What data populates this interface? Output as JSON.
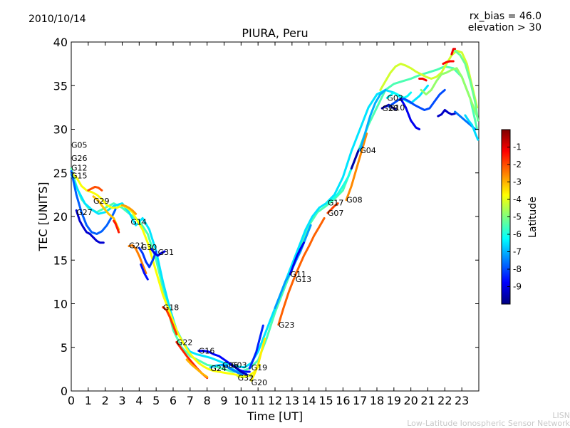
{
  "header": {
    "date": "2010/10/14",
    "rx_bias": "rx_bias = 46.0",
    "elevation": "elevation > 30"
  },
  "footer": {
    "line1": "LISN",
    "line2": "Low-Latitude Ionospheric Sensor Network"
  },
  "chart_data": {
    "type": "scatter",
    "title": "PIURA, Peru",
    "xlabel": "Time [UT]",
    "ylabel": "TEC [UNITS]",
    "xlim": [
      0,
      24
    ],
    "ylim": [
      0,
      40
    ],
    "xticks": [
      0,
      1,
      2,
      3,
      4,
      5,
      6,
      7,
      8,
      9,
      10,
      11,
      12,
      13,
      14,
      15,
      16,
      17,
      18,
      19,
      20,
      21,
      22,
      23
    ],
    "yticks": [
      0,
      5,
      10,
      15,
      20,
      25,
      30,
      35,
      40
    ],
    "colorbar": {
      "label": "Latitude",
      "range": [
        -10,
        0
      ],
      "ticks": [
        -9,
        -8,
        -7,
        -6,
        -5,
        -4,
        -3,
        -2,
        -1
      ],
      "colormap": [
        "#00007f",
        "#0000ff",
        "#007fff",
        "#00ffff",
        "#7fff7f",
        "#ffff00",
        "#ff7f00",
        "#ff0000",
        "#7f0000"
      ]
    },
    "labels": [
      {
        "text": "G05",
        "x": 0.0,
        "y": 28.2
      },
      {
        "text": "G26",
        "x": 0.0,
        "y": 26.7
      },
      {
        "text": "G12",
        "x": 0.0,
        "y": 25.6
      },
      {
        "text": "G15",
        "x": 0.0,
        "y": 24.7
      },
      {
        "text": "G27",
        "x": 0.3,
        "y": 20.5
      },
      {
        "text": "G29",
        "x": 1.3,
        "y": 21.8
      },
      {
        "text": "G14",
        "x": 3.5,
        "y": 19.4
      },
      {
        "text": "G21",
        "x": 3.4,
        "y": 16.7
      },
      {
        "text": "G30",
        "x": 4.1,
        "y": 16.5
      },
      {
        "text": "G31",
        "x": 5.1,
        "y": 15.9
      },
      {
        "text": "G18",
        "x": 5.4,
        "y": 9.6
      },
      {
        "text": "G22",
        "x": 6.2,
        "y": 5.6
      },
      {
        "text": "G16",
        "x": 7.5,
        "y": 4.6
      },
      {
        "text": "G24",
        "x": 8.2,
        "y": 2.6
      },
      {
        "text": "G06",
        "x": 8.9,
        "y": 3.0
      },
      {
        "text": "G03",
        "x": 9.4,
        "y": 3.0
      },
      {
        "text": "G32",
        "x": 9.8,
        "y": 1.5
      },
      {
        "text": "G19",
        "x": 10.6,
        "y": 2.7
      },
      {
        "text": "G20",
        "x": 10.6,
        "y": 1.0
      },
      {
        "text": "G23",
        "x": 12.2,
        "y": 7.6
      },
      {
        "text": "G11",
        "x": 12.9,
        "y": 13.4
      },
      {
        "text": "G13",
        "x": 13.2,
        "y": 12.8
      },
      {
        "text": "G17",
        "x": 15.1,
        "y": 21.6
      },
      {
        "text": "G07",
        "x": 15.1,
        "y": 20.4
      },
      {
        "text": "G08",
        "x": 16.2,
        "y": 21.9
      },
      {
        "text": "G04",
        "x": 17.0,
        "y": 27.6
      },
      {
        "text": "G02",
        "x": 18.6,
        "y": 33.6
      },
      {
        "text": "G28",
        "x": 18.3,
        "y": 32.4
      },
      {
        "text": "G10",
        "x": 18.7,
        "y": 32.5
      }
    ],
    "series": [
      {
        "lat": -5.5,
        "x": [
          0,
          0.3,
          0.6,
          1.0,
          1.5,
          2.0,
          2.5,
          3.0,
          3.5,
          4.0,
          4.5,
          5.0,
          5.5,
          6.0,
          6.5,
          7.0,
          7.5,
          8.0,
          8.5,
          9.0,
          9.5,
          10.0,
          10.5,
          11.0,
          11.5,
          12.0,
          12.5,
          13.0,
          13.5,
          14.0,
          14.5,
          15.0,
          15.5,
          16.0,
          16.5,
          17.0,
          17.5,
          18.0,
          18.5,
          19.0,
          19.5,
          20.0,
          20.5,
          21.0,
          21.5,
          22.0,
          22.5,
          23.0,
          23.5,
          23.9
        ],
        "y": [
          25.5,
          23.5,
          22,
          21,
          20.5,
          21,
          21.5,
          21,
          20.2,
          19.5,
          18,
          15,
          11,
          7,
          5,
          4,
          3.5,
          3,
          2.8,
          2.5,
          2.2,
          2.2,
          2.6,
          3.5,
          6,
          9,
          11.5,
          14,
          16.5,
          19,
          20.5,
          21.2,
          22,
          23,
          25.5,
          28,
          30.5,
          32.5,
          34.5,
          35.2,
          35.5,
          35.8,
          36.2,
          36.5,
          36.8,
          37.2,
          37,
          36,
          33.5,
          30
        ]
      },
      {
        "lat": -6.5,
        "x": [
          0,
          0.4,
          0.8,
          1.2,
          1.6,
          2.0,
          2.5,
          3.0,
          3.4,
          3.8,
          4.2,
          4.6,
          5.0,
          5.4,
          5.8,
          6.2,
          6.6,
          7.0,
          7.4,
          7.8,
          8.2,
          8.6,
          9.0,
          9.4,
          9.8,
          10.2,
          10.6,
          11.0,
          11.4,
          11.8,
          12.2,
          12.6,
          13.0,
          13.4,
          13.8,
          14.2,
          14.6,
          15.0,
          15.5,
          16.0,
          16.5,
          17.0,
          17.5,
          18.0,
          18.5,
          19.0,
          19.5,
          20.0,
          20.5,
          21.0
        ],
        "y": [
          24.8,
          23,
          21.5,
          20.8,
          20.3,
          20.5,
          21.2,
          21.5,
          20.5,
          19,
          19.8,
          18.5,
          16,
          12.5,
          9.5,
          7,
          5.5,
          4.5,
          4.2,
          4,
          3.8,
          3.5,
          3.2,
          3,
          2.8,
          2.7,
          3.2,
          4.5,
          6.5,
          8.5,
          10.5,
          12.5,
          14.5,
          16.5,
          18.5,
          20,
          21,
          21.5,
          22.5,
          24.5,
          27.5,
          30,
          32.5,
          34,
          34.5,
          34.2,
          33.5,
          33,
          33.8,
          35
        ]
      },
      {
        "lat": -3.8,
        "x": [
          0,
          0.3,
          0.6,
          0.9,
          1.2,
          1.5,
          1.8,
          2.1,
          2.4,
          2.7,
          3.0,
          3.3,
          3.6,
          3.9,
          4.2,
          4.5,
          4.8,
          5.1,
          5.4,
          5.7,
          6.0,
          6.3,
          6.6,
          6.9,
          7.2,
          7.5,
          7.8,
          8.1,
          8.4,
          8.7,
          9.0,
          9.3,
          9.6,
          9.9,
          10.2,
          10.5,
          10.8,
          11.1
        ],
        "y": [
          25,
          24.5,
          23.5,
          23,
          22.8,
          22.5,
          22,
          21.3,
          21,
          21,
          21.3,
          21,
          20.5,
          19.5,
          18.5,
          17,
          15,
          13,
          11,
          9.5,
          8,
          6.5,
          5.5,
          4.5,
          3.8,
          3.2,
          2.8,
          2.5,
          2.3,
          2.2,
          2.1,
          2.0,
          1.9,
          1.8,
          1.7,
          1.8,
          2.2,
          3.0
        ]
      },
      {
        "lat": -4.2,
        "x": [
          18.2,
          18.5,
          18.8,
          19.1,
          19.4,
          19.7,
          20.0,
          20.3,
          20.6,
          20.9,
          21.2,
          21.5,
          21.8,
          22.1,
          22.4,
          22.7,
          23.0,
          23.3,
          23.6,
          23.9
        ],
        "y": [
          34.5,
          35.5,
          36.5,
          37.2,
          37.5,
          37.3,
          37,
          36.6,
          36.3,
          36,
          35.8,
          36,
          36.5,
          37.5,
          38.5,
          39,
          38.8,
          37.5,
          35,
          32.5
        ]
      },
      {
        "lat": -9.2,
        "x": [
          0.3,
          0.5,
          0.7,
          0.9,
          1.1,
          1.3,
          1.5,
          1.7,
          1.9
        ],
        "y": [
          20.7,
          19.5,
          18.8,
          18.2,
          18,
          17.6,
          17.2,
          17,
          17
        ]
      },
      {
        "lat": -7.8,
        "x": [
          0.0,
          0.3,
          0.6,
          0.9,
          1.2,
          1.5,
          1.8,
          2.1,
          2.4,
          2.6
        ],
        "y": [
          25.2,
          22.5,
          20.5,
          19,
          18.2,
          18,
          18.3,
          19,
          20,
          20.8
        ]
      },
      {
        "lat": -2.0,
        "x": [
          1.0,
          1.2,
          1.4,
          1.6,
          1.8
        ],
        "y": [
          23.0,
          23.2,
          23.4,
          23.3,
          23.0
        ]
      },
      {
        "lat": -3.2,
        "x": [
          1.3,
          1.6,
          1.9,
          2.2,
          2.5,
          2.8
        ],
        "y": [
          22.3,
          21.8,
          21,
          20.3,
          19.8,
          18.5
        ]
      },
      {
        "lat": -2.8,
        "x": [
          3.0,
          3.2,
          3.4,
          3.6,
          3.8
        ],
        "y": [
          21.3,
          21.2,
          21,
          20.7,
          20.3
        ]
      },
      {
        "lat": -1.5,
        "x": [
          2.5,
          2.6,
          2.7,
          2.8
        ],
        "y": [
          19.5,
          19.2,
          18.7,
          18.2
        ]
      },
      {
        "lat": -2.5,
        "x": [
          3.4,
          3.6,
          3.8,
          4.0,
          4.2,
          4.4
        ],
        "y": [
          16.6,
          16.7,
          16.3,
          15.5,
          14.5,
          13.5
        ]
      },
      {
        "lat": -8.2,
        "x": [
          4.0,
          4.2,
          4.4,
          4.6,
          4.8,
          5.0
        ],
        "y": [
          16.4,
          15.8,
          14.8,
          14.2,
          15,
          16
        ]
      },
      {
        "lat": -9.0,
        "x": [
          4.7,
          4.9,
          5.1,
          5.3,
          5.5
        ],
        "y": [
          16.3,
          15.8,
          15.5,
          15.8,
          16.0
        ]
      },
      {
        "lat": -8.6,
        "x": [
          4.1,
          4.3,
          4.5
        ],
        "y": [
          14.5,
          13.5,
          12.8
        ]
      },
      {
        "lat": -1.8,
        "x": [
          5.4,
          5.6,
          5.8,
          6.0,
          6.2
        ],
        "y": [
          9.6,
          9.3,
          8.5,
          7.5,
          6.5
        ]
      },
      {
        "lat": -1.6,
        "x": [
          6.2,
          6.5,
          6.8,
          7.1,
          7.4,
          7.7,
          8.0
        ],
        "y": [
          5.6,
          4.8,
          4.0,
          3.3,
          2.6,
          2.0,
          1.5
        ]
      },
      {
        "lat": -3.0,
        "x": [
          6.8,
          7.1,
          7.4,
          7.7,
          8.0
        ],
        "y": [
          3.6,
          3.0,
          2.5,
          2.0,
          1.6
        ]
      },
      {
        "lat": -8.7,
        "x": [
          7.5,
          7.8,
          8.1,
          8.4,
          8.7,
          9.0,
          9.3,
          9.6,
          9.9,
          10.2,
          10.5
        ],
        "y": [
          4.6,
          4.6,
          4.5,
          4.2,
          4.0,
          3.6,
          3.2,
          2.8,
          2.4,
          2.2,
          2.2
        ]
      },
      {
        "lat": -6.8,
        "x": [
          8.2,
          8.5,
          8.8,
          9.1,
          9.4,
          9.7,
          10.0,
          10.3
        ],
        "y": [
          2.7,
          2.9,
          3.0,
          2.8,
          2.6,
          2.3,
          2.1,
          2.0
        ]
      },
      {
        "lat": -7.5,
        "x": [
          8.9,
          9.1,
          9.3,
          9.5,
          9.7,
          9.9,
          10.1
        ],
        "y": [
          3.0,
          2.9,
          2.6,
          2.4,
          2.2,
          2.0,
          1.9
        ]
      },
      {
        "lat": -9.4,
        "x": [
          9.4,
          9.6,
          9.8,
          10.0,
          10.2,
          10.4,
          10.6
        ],
        "y": [
          3.0,
          2.8,
          2.5,
          2.2,
          2.0,
          1.8,
          1.7
        ]
      },
      {
        "lat": -4.0,
        "x": [
          9.8,
          10.0,
          10.2,
          10.4,
          10.6
        ],
        "y": [
          1.7,
          1.6,
          1.6,
          1.7,
          1.8
        ]
      },
      {
        "lat": -8.4,
        "x": [
          10.5,
          10.7,
          10.9,
          11.1,
          11.3
        ],
        "y": [
          2.6,
          3.5,
          4.5,
          6.0,
          7.5
        ]
      },
      {
        "lat": -3.6,
        "x": [
          10.6,
          10.8,
          11.0,
          11.2,
          11.4
        ],
        "y": [
          1.2,
          2.0,
          3.0,
          4.5,
          6.0
        ]
      },
      {
        "lat": -2.2,
        "x": [
          12.2,
          12.5,
          12.8,
          13.1,
          13.4,
          13.7,
          14.0,
          14.3,
          14.6,
          14.9
        ],
        "y": [
          7.6,
          9.5,
          11.3,
          12.8,
          14.2,
          15.5,
          16.6,
          17.8,
          18.8,
          19.8
        ]
      },
      {
        "lat": -7.2,
        "x": [
          12.0,
          12.3,
          12.6,
          12.9,
          13.2,
          13.5,
          13.8,
          14.1
        ],
        "y": [
          9.5,
          11,
          12.5,
          13.5,
          14.8,
          16,
          17.5,
          19
        ]
      },
      {
        "lat": -8.9,
        "x": [
          12.9,
          13.1,
          13.3,
          13.5,
          13.7
        ],
        "y": [
          13.4,
          14.5,
          15.5,
          16.3,
          17.0
        ]
      },
      {
        "lat": -6.0,
        "x": [
          15.1,
          15.4,
          15.7,
          16.0,
          16.3,
          16.6
        ],
        "y": [
          21.6,
          22.0,
          22.6,
          23.5,
          24.5,
          26.0
        ]
      },
      {
        "lat": -1.9,
        "x": [
          15.1,
          15.3,
          15.5,
          15.7
        ],
        "y": [
          20.4,
          20.8,
          21.2,
          21.5
        ]
      },
      {
        "lat": -2.6,
        "x": [
          16.2,
          16.5,
          16.8,
          17.1,
          17.4
        ],
        "y": [
          21.9,
          23.5,
          25.5,
          27.5,
          29.5
        ]
      },
      {
        "lat": -9.6,
        "x": [
          16.5,
          16.7,
          16.9,
          17.1
        ],
        "y": [
          25.5,
          26.5,
          27.5,
          28.0
        ]
      },
      {
        "lat": -7.0,
        "x": [
          17.0,
          17.3,
          17.6,
          17.9,
          18.2,
          18.5
        ],
        "y": [
          27.6,
          29.5,
          31.5,
          33.0,
          34.0,
          34.5
        ]
      },
      {
        "lat": -6.2,
        "x": [
          18.6,
          18.8,
          19.0,
          19.2,
          19.4,
          19.6,
          19.8,
          20.0
        ],
        "y": [
          33.6,
          33.9,
          34.2,
          34.0,
          33.8,
          33.6,
          33.8,
          34.2
        ]
      },
      {
        "lat": -9.5,
        "x": [
          18.3,
          18.5,
          18.7,
          18.9,
          19.1
        ],
        "y": [
          32.4,
          32.6,
          32.8,
          32.5,
          32.3
        ]
      },
      {
        "lat": -8.0,
        "x": [
          18.7,
          19.0,
          19.3,
          19.6,
          19.9,
          20.2,
          20.5,
          20.8,
          21.1,
          21.4,
          21.7,
          22.0
        ],
        "y": [
          32.6,
          33.0,
          33.4,
          33.5,
          33.2,
          32.8,
          32.5,
          32.2,
          32.4,
          33.2,
          34.0,
          34.5
        ]
      },
      {
        "lat": -8.9,
        "x": [
          19.4,
          19.7,
          20.0,
          20.3,
          20.5
        ],
        "y": [
          33.5,
          32.5,
          31.0,
          30.2,
          30.0
        ]
      },
      {
        "lat": -9.3,
        "x": [
          21.6,
          21.8,
          22.0,
          22.2,
          22.4,
          22.6
        ],
        "y": [
          31.5,
          31.7,
          32.2,
          31.9,
          31.7,
          31.8
        ]
      },
      {
        "lat": -7.6,
        "x": [
          22.6,
          22.9,
          23.2,
          23.5,
          23.8
        ],
        "y": [
          32,
          31.5,
          31.0,
          30.5,
          30.0
        ]
      },
      {
        "lat": -6.6,
        "x": [
          23.2,
          23.4,
          23.6,
          23.8,
          23.95
        ],
        "y": [
          31.6,
          31.0,
          30.5,
          29.5,
          28.8
        ]
      },
      {
        "lat": -4.8,
        "x": [
          20.6,
          20.9,
          21.2,
          21.5,
          21.8,
          22.1,
          22.4,
          22.7,
          23.0,
          23.3,
          23.6,
          23.9
        ],
        "y": [
          34.5,
          34.0,
          34.5,
          35.5,
          36.3,
          36.5,
          36.8,
          37.0,
          36.0,
          34.5,
          33.0,
          31.5
        ]
      },
      {
        "lat": -1.3,
        "x": [
          21.9,
          22.1,
          22.3,
          22.5
        ],
        "y": [
          37.5,
          37.7,
          37.8,
          37.8
        ]
      },
      {
        "lat": -1.2,
        "x": [
          20.5,
          20.7,
          20.9
        ],
        "y": [
          35.8,
          35.8,
          35.6
        ]
      },
      {
        "lat": -1.1,
        "x": [
          22.4,
          22.5,
          22.6
        ],
        "y": [
          38.6,
          39.2,
          39.2
        ]
      },
      {
        "lat": -5.2,
        "x": [
          22.6,
          22.9,
          23.2,
          23.5,
          23.8,
          23.95
        ],
        "y": [
          39.0,
          38.5,
          37.5,
          35.5,
          33.0,
          31.0
        ]
      }
    ]
  }
}
